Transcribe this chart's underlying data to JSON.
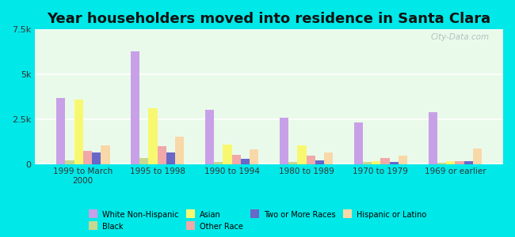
{
  "title": "Year householders moved into residence in Santa Clara",
  "categories": [
    "1999 to March\n2000",
    "1995 to 1998",
    "1990 to 1994",
    "1980 to 1989",
    "1970 to 1979",
    "1969 or earlier"
  ],
  "series": {
    "White Non-Hispanic": [
      3700,
      6300,
      3000,
      2600,
      2300,
      2900
    ],
    "Black": [
      200,
      350,
      100,
      100,
      130,
      80
    ],
    "Asian": [
      3600,
      3100,
      1100,
      1050,
      150,
      150
    ],
    "Other Race": [
      750,
      1000,
      500,
      450,
      350,
      150
    ],
    "Two or More Races": [
      650,
      650,
      280,
      220,
      130,
      170
    ],
    "Hispanic or Latino": [
      1050,
      1500,
      800,
      650,
      450,
      850
    ]
  },
  "colors": {
    "White Non-Hispanic": "#c8a0e8",
    "Black": "#c8d890",
    "Asian": "#f8f870",
    "Other Race": "#f0a8a8",
    "Two or More Races": "#6868c8",
    "Hispanic or Latino": "#f8d8a8"
  },
  "legend_order": [
    "White Non-Hispanic",
    "Black",
    "Asian",
    "Other Race",
    "Two or More Races",
    "Hispanic or Latino"
  ],
  "ylim": [
    0,
    7500
  ],
  "yticks": [
    0,
    2500,
    5000,
    7500
  ],
  "ytick_labels": [
    "0",
    "2.5k",
    "5k",
    "7.5k"
  ],
  "background_color": "#00e8e8",
  "plot_bg_color": "#eafaea",
  "title_fontsize": 13,
  "watermark": "City-Data.com"
}
